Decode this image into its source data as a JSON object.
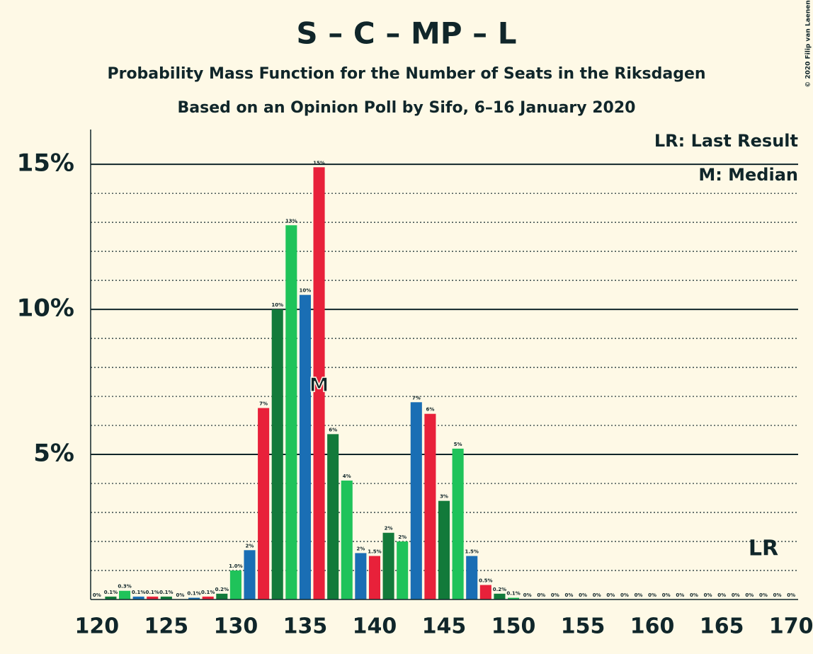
{
  "chart_data": {
    "type": "bar",
    "title": "S – C – MP – L",
    "subtitle": "Probability Mass Function for the Number of Seats in the Riksdagen",
    "subtitle2": "Based on an Opinion Poll by Sifo, 6–16 January 2020",
    "credit": "© 2020 Filip van Laenen",
    "notes": [
      "LR: Last Result",
      "M: Median"
    ],
    "median": {
      "label": "M",
      "x": 136
    },
    "last_result": {
      "label": "LR",
      "x": 168
    },
    "categories": [
      120,
      121,
      122,
      123,
      124,
      125,
      126,
      127,
      128,
      129,
      130,
      131,
      132,
      133,
      134,
      135,
      136,
      137,
      138,
      139,
      140,
      141,
      142,
      143,
      144,
      145,
      146,
      147,
      148,
      149,
      150,
      151,
      152,
      153,
      154,
      155,
      156,
      157,
      158,
      159,
      160,
      161,
      162,
      163,
      164,
      165,
      166,
      167,
      168,
      169,
      170
    ],
    "values": [
      0,
      0.1,
      0.3,
      0.1,
      0.1,
      0.1,
      0,
      0.06,
      0.1,
      0.2,
      1.0,
      1.7,
      6.6,
      10.0,
      12.9,
      10.5,
      14.9,
      5.7,
      4.1,
      1.6,
      1.5,
      2.3,
      2.0,
      6.8,
      6.4,
      3.4,
      5.2,
      1.5,
      0.5,
      0.2,
      0.06,
      0,
      0,
      0,
      0,
      0,
      0,
      0,
      0,
      0,
      0,
      0,
      0,
      0,
      0,
      0,
      0,
      0,
      0,
      0,
      0
    ],
    "value_labels": [
      "0%",
      "0.1%",
      "0.3%",
      "0.1%",
      "0.1%",
      "0.1%",
      "0%",
      "0.1%",
      "0.1%",
      "0.2%",
      "1.0%",
      "2%",
      "7%",
      "10%",
      "13%",
      "10%",
      "15%",
      "6%",
      "4%",
      "2%",
      "1.5%",
      "2%",
      "2%",
      "7%",
      "6%",
      "3%",
      "5%",
      "1.5%",
      "0.5%",
      "0.2%",
      "0.1%",
      "0%",
      "0%",
      "0%",
      "0%",
      "0%",
      "0%",
      "0%",
      "0%",
      "0%",
      "0%",
      "0%",
      "0%",
      "0%",
      "0%",
      "0%",
      "0%",
      "0%",
      "0%",
      "0%",
      "0%"
    ],
    "colors": [
      "#e8213a",
      "#127a3a",
      "#1fc35a",
      "#1a6eb4"
    ],
    "xlim": [
      119.55,
      170.5
    ],
    "xticks": [
      120,
      125,
      130,
      135,
      140,
      145,
      150,
      155,
      160,
      165,
      170
    ],
    "ylim": [
      0,
      16.2
    ],
    "yticks": [
      {
        "value": 5,
        "label": "5%"
      },
      {
        "value": 10,
        "label": "10%"
      },
      {
        "value": 15,
        "label": "15%"
      }
    ],
    "minor_yticks": [
      1,
      2,
      3,
      4,
      6,
      7,
      8,
      9,
      11,
      12,
      13,
      14
    ],
    "grid": true
  }
}
